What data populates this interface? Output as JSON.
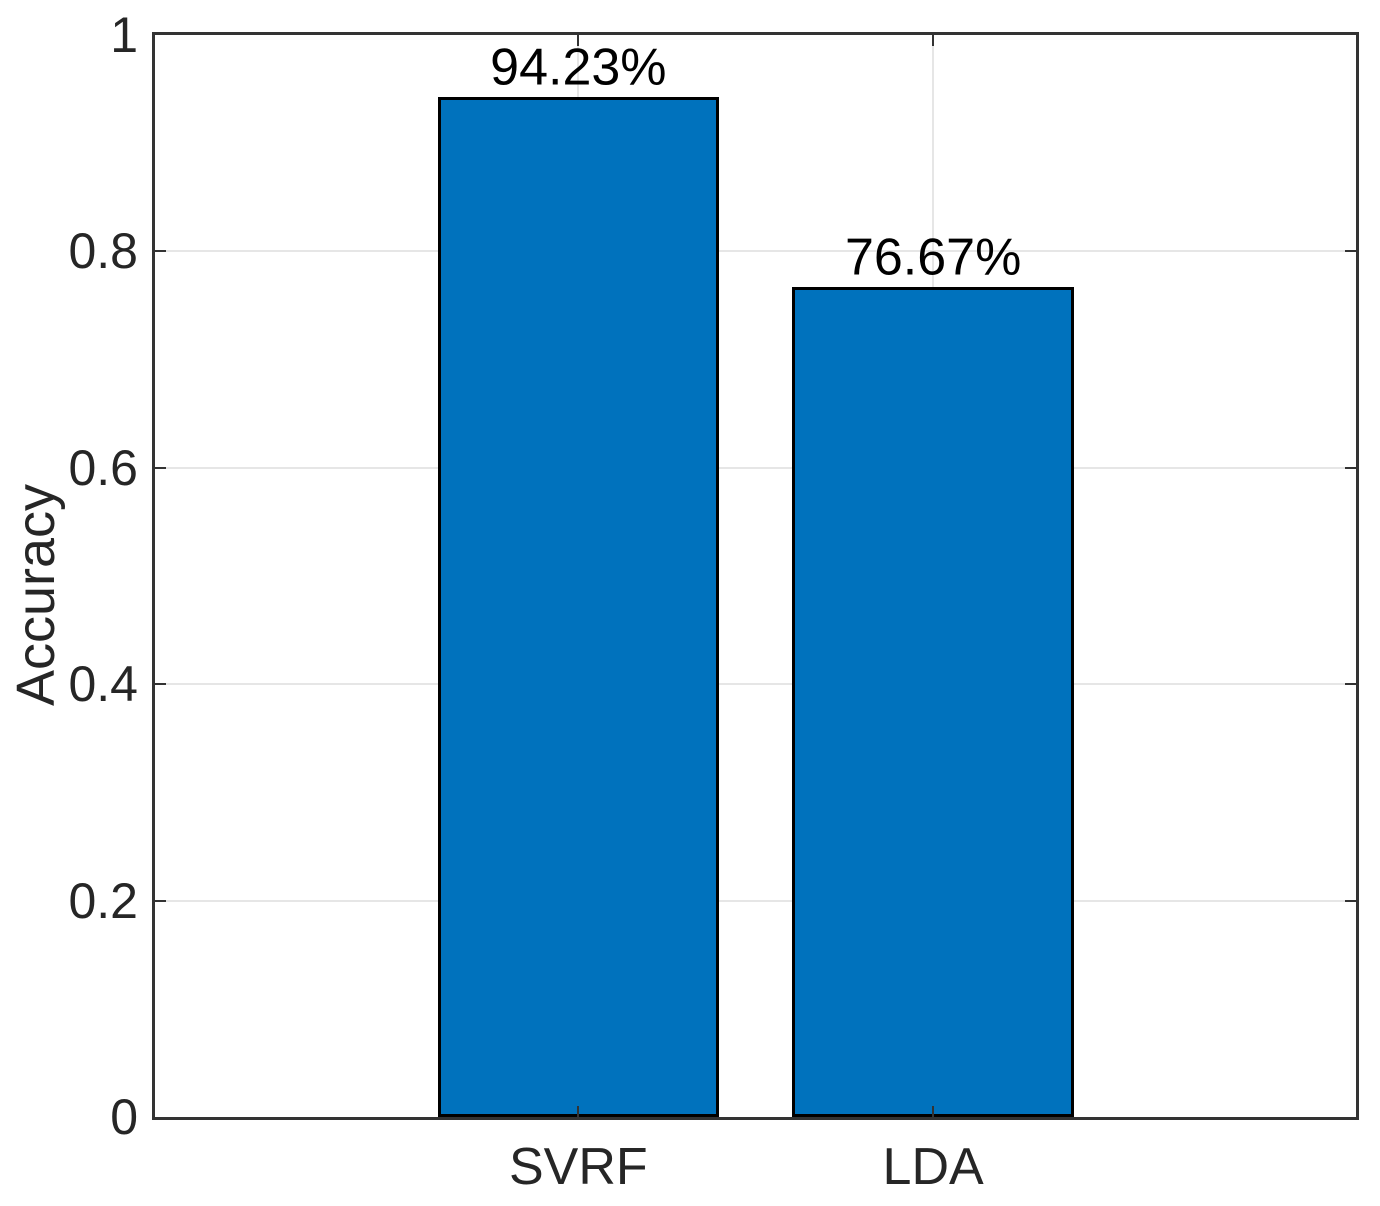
{
  "chart_data": {
    "type": "bar",
    "categories": [
      "SVRF",
      "LDA"
    ],
    "values": [
      0.9423,
      0.7667
    ],
    "bar_labels": [
      "94.23%",
      "76.67%"
    ],
    "title": "",
    "xlabel": "",
    "ylabel": "Accuracy",
    "ylim": [
      0,
      1
    ],
    "yticks": [
      0,
      0.2,
      0.4,
      0.6,
      0.8,
      1
    ],
    "ytick_labels": [
      "0",
      "0.2",
      "0.4",
      "0.6",
      "0.8",
      "1"
    ],
    "grid": true,
    "legend_position": "none",
    "colors": {
      "bar_fill": "#0072BD",
      "bar_edge": "#000000",
      "axis": "#333333",
      "grid": "#e6e6e6",
      "tick_text": "#262626",
      "value_text": "#000000",
      "background": "#ffffff"
    },
    "layout": {
      "bar_centers_frac": [
        0.3525,
        0.6479
      ],
      "bar_width_frac": 0.2345
    }
  }
}
